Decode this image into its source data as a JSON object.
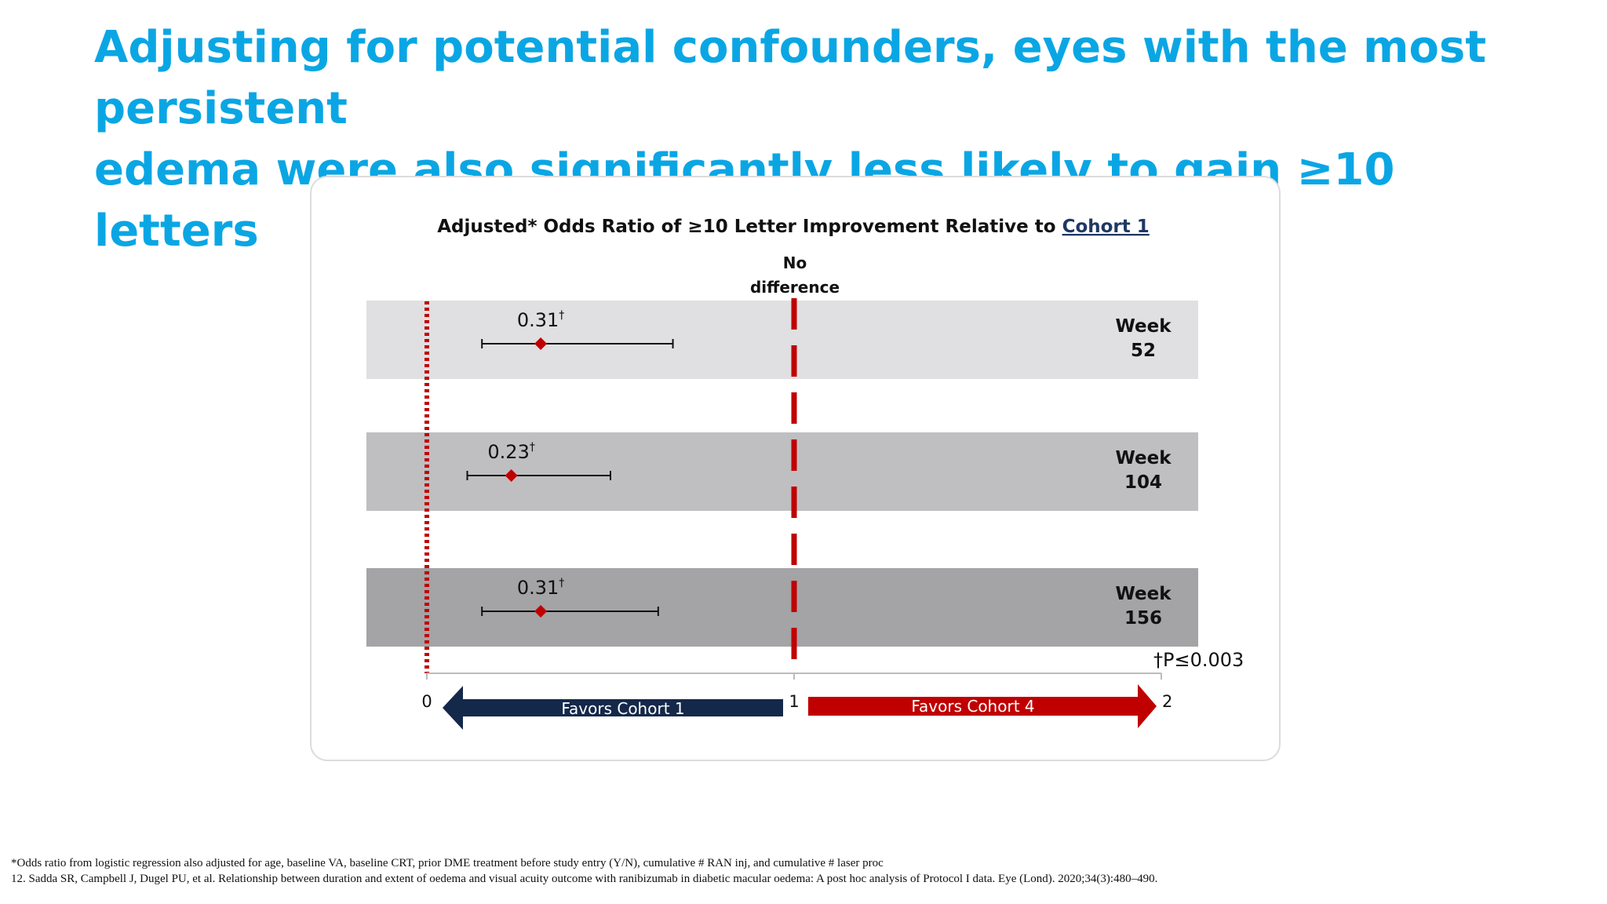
{
  "slide": {
    "headline_line1": "Adjusting for potential confounders, eyes with the most persistent",
    "headline_line2": "edema were also significantly less likely to gain ≥10 letters",
    "footnote_1": "*Odds ratio from logistic regression also adjusted for age, baseline VA, baseline CRT, prior DME treatment before study entry (Y/N), cumulative # RAN inj, and cumulative # laser proc",
    "footnote_2": "12. Sadda SR, Campbell J, Dugel PU, et al. Relationship between duration and extent of oedema and visual acuity outcome with ranibizumab in diabetic macular oedema: A post hoc analysis of Protocol I data. Eye (Lond). 2020;34(3):480–490."
  },
  "chart_data": {
    "type": "forest",
    "title_prefix": "Adjusted* Odds Ratio of ≥10 Letter Improvement Relative to ",
    "title_link": "Cohort 1",
    "reference_line": {
      "value": 1,
      "label_line1": "No",
      "label_line2": "difference"
    },
    "zero_line": 0,
    "xlim": [
      0,
      2
    ],
    "ticks": [
      {
        "value": 0,
        "label": "0"
      },
      {
        "value": 1,
        "label": "1"
      },
      {
        "value": 2,
        "label": "2"
      }
    ],
    "rows": [
      {
        "label_line1": "Week",
        "label_line2": "52",
        "estimate": 0.31,
        "ci_low": 0.15,
        "ci_high": 0.67,
        "value_label": "0.31",
        "marker": "†",
        "band_color": "#e0dfe1"
      },
      {
        "label_line1": "Week",
        "label_line2": "104",
        "estimate": 0.23,
        "ci_low": 0.11,
        "ci_high": 0.5,
        "value_label": "0.23",
        "marker": "†",
        "band_color": "#bfbec0"
      },
      {
        "label_line1": "Week",
        "label_line2": "156",
        "estimate": 0.31,
        "ci_low": 0.15,
        "ci_high": 0.63,
        "value_label": "0.31",
        "marker": "†",
        "band_color": "#a4a3a5"
      }
    ],
    "pvalue_note": "†P≤0.003",
    "favors_left": {
      "label": "Favors Cohort 1",
      "color": "#14284a"
    },
    "favors_right": {
      "label": "Favors Cohort 4",
      "color": "#c00000"
    },
    "point_color": "#c00000",
    "reference_color": "#c00000",
    "link_color": "#1f3864"
  }
}
